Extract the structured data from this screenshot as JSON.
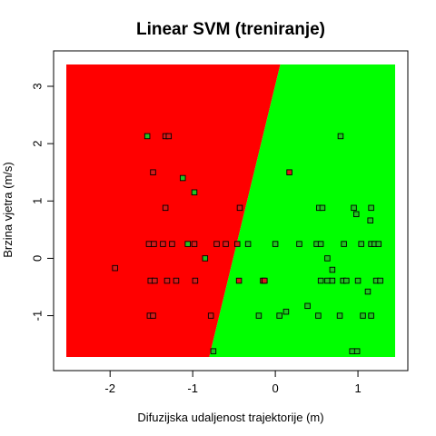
{
  "chart_data": {
    "type": "scatter",
    "title": "Linear SVM (treniranje)",
    "xlabel": "Difuzijska udaljenost trajektorije (m)",
    "ylabel": "Brzina vjetra (m/s)",
    "xlim": [
      -2.53,
      1.45
    ],
    "ylim": [
      -1.72,
      3.38
    ],
    "x_ticks": [
      -2,
      -1,
      0,
      1
    ],
    "x_tick_labels": [
      "-2",
      "-1",
      "0",
      "1"
    ],
    "y_ticks": [
      -1,
      0,
      1,
      2,
      3
    ],
    "y_tick_labels": [
      "-1",
      "0",
      "1",
      "2",
      "3"
    ],
    "decision_boundary": {
      "x_at_ymin": -0.8,
      "x_at_ymax": 0.06
    },
    "region_colors": {
      "left": "#ff0000",
      "right": "#00ff00"
    },
    "point_outline": "#000000",
    "class_colors": {
      "red_class": "#d81b1b",
      "green_class": "#22c322"
    },
    "points": [
      {
        "x": -1.55,
        "y": 2.13,
        "c": "green_class"
      },
      {
        "x": -1.33,
        "y": 2.13,
        "c": "red_class"
      },
      {
        "x": -1.29,
        "y": 2.13,
        "c": "red_class"
      },
      {
        "x": -1.48,
        "y": 1.5,
        "c": "red_class"
      },
      {
        "x": -1.12,
        "y": 1.4,
        "c": "green_class"
      },
      {
        "x": -0.98,
        "y": 1.15,
        "c": "green_class"
      },
      {
        "x": -1.33,
        "y": 0.88,
        "c": "red_class"
      },
      {
        "x": -0.43,
        "y": 0.88,
        "c": "red_class"
      },
      {
        "x": -1.53,
        "y": 0.25,
        "c": "red_class"
      },
      {
        "x": -1.47,
        "y": 0.25,
        "c": "red_class"
      },
      {
        "x": -1.36,
        "y": 0.25,
        "c": "red_class"
      },
      {
        "x": -1.25,
        "y": 0.25,
        "c": "red_class"
      },
      {
        "x": -1.06,
        "y": 0.25,
        "c": "green_class"
      },
      {
        "x": -0.98,
        "y": 0.25,
        "c": "red_class"
      },
      {
        "x": -0.71,
        "y": 0.25,
        "c": "red_class"
      },
      {
        "x": -0.6,
        "y": 0.25,
        "c": "red_class"
      },
      {
        "x": -0.46,
        "y": 0.25,
        "c": "red_class"
      },
      {
        "x": -0.85,
        "y": 0.0,
        "c": "green_class"
      },
      {
        "x": -1.94,
        "y": -0.17,
        "c": "red_class"
      },
      {
        "x": -1.51,
        "y": -0.39,
        "c": "red_class"
      },
      {
        "x": -1.46,
        "y": -0.39,
        "c": "red_class"
      },
      {
        "x": -1.31,
        "y": -0.39,
        "c": "red_class"
      },
      {
        "x": -1.2,
        "y": -0.39,
        "c": "red_class"
      },
      {
        "x": -0.97,
        "y": -0.39,
        "c": "red_class"
      },
      {
        "x": -0.44,
        "y": -0.39,
        "c": "red_class"
      },
      {
        "x": -0.15,
        "y": -0.39,
        "c": "red_class"
      },
      {
        "x": -0.13,
        "y": -0.39,
        "c": "red_class"
      },
      {
        "x": -1.52,
        "y": -1.0,
        "c": "red_class"
      },
      {
        "x": -1.48,
        "y": -1.0,
        "c": "red_class"
      },
      {
        "x": -0.78,
        "y": -1.0,
        "c": "red_class"
      },
      {
        "x": 0.17,
        "y": 1.5,
        "c": "red_class"
      },
      {
        "x": 0.79,
        "y": 2.13,
        "c": "green_class"
      },
      {
        "x": 0.53,
        "y": 0.88,
        "c": "green_class"
      },
      {
        "x": 0.57,
        "y": 0.88,
        "c": "green_class"
      },
      {
        "x": 0.95,
        "y": 0.88,
        "c": "green_class"
      },
      {
        "x": 1.16,
        "y": 0.88,
        "c": "green_class"
      },
      {
        "x": 0.98,
        "y": 0.77,
        "c": "green_class"
      },
      {
        "x": 1.15,
        "y": 0.66,
        "c": "green_class"
      },
      {
        "x": -0.33,
        "y": 0.25,
        "c": "green_class"
      },
      {
        "x": 0.0,
        "y": 0.25,
        "c": "green_class"
      },
      {
        "x": 0.29,
        "y": 0.25,
        "c": "green_class"
      },
      {
        "x": 0.5,
        "y": 0.25,
        "c": "green_class"
      },
      {
        "x": 0.55,
        "y": 0.25,
        "c": "green_class"
      },
      {
        "x": 0.83,
        "y": 0.25,
        "c": "green_class"
      },
      {
        "x": 1.04,
        "y": 0.25,
        "c": "green_class"
      },
      {
        "x": 1.16,
        "y": 0.25,
        "c": "green_class"
      },
      {
        "x": 1.2,
        "y": 0.25,
        "c": "green_class"
      },
      {
        "x": 1.25,
        "y": 0.25,
        "c": "green_class"
      },
      {
        "x": 0.63,
        "y": 0.0,
        "c": "green_class"
      },
      {
        "x": 0.69,
        "y": -0.2,
        "c": "green_class"
      },
      {
        "x": 0.55,
        "y": -0.39,
        "c": "green_class"
      },
      {
        "x": 0.63,
        "y": -0.39,
        "c": "green_class"
      },
      {
        "x": 0.69,
        "y": -0.39,
        "c": "green_class"
      },
      {
        "x": 0.82,
        "y": -0.39,
        "c": "green_class"
      },
      {
        "x": 0.86,
        "y": -0.39,
        "c": "green_class"
      },
      {
        "x": 1.0,
        "y": -0.39,
        "c": "green_class"
      },
      {
        "x": 1.22,
        "y": -0.39,
        "c": "green_class"
      },
      {
        "x": 1.27,
        "y": -0.39,
        "c": "green_class"
      },
      {
        "x": 1.12,
        "y": -0.58,
        "c": "green_class"
      },
      {
        "x": 0.39,
        "y": -0.83,
        "c": "green_class"
      },
      {
        "x": 0.13,
        "y": -0.93,
        "c": "green_class"
      },
      {
        "x": -0.2,
        "y": -1.0,
        "c": "green_class"
      },
      {
        "x": 0.05,
        "y": -1.0,
        "c": "green_class"
      },
      {
        "x": 0.52,
        "y": -1.0,
        "c": "green_class"
      },
      {
        "x": 0.78,
        "y": -1.0,
        "c": "green_class"
      },
      {
        "x": 1.06,
        "y": -1.0,
        "c": "green_class"
      },
      {
        "x": 1.16,
        "y": -1.0,
        "c": "green_class"
      },
      {
        "x": -0.75,
        "y": -1.62,
        "c": "green_class"
      },
      {
        "x": 0.93,
        "y": -1.62,
        "c": "green_class"
      },
      {
        "x": 0.99,
        "y": -1.62,
        "c": "green_class"
      }
    ]
  }
}
